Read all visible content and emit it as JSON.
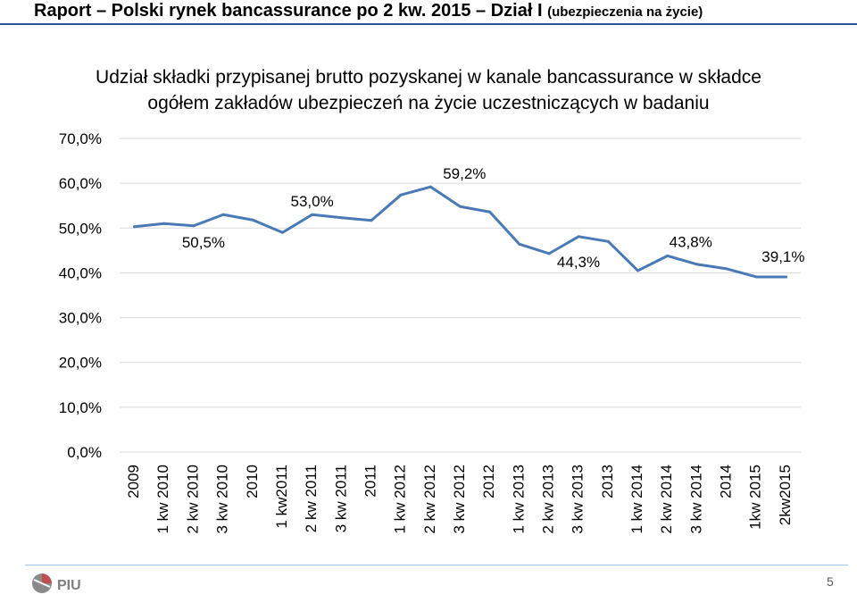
{
  "header": {
    "title": "Raport – Polski rynek bancassurance po 2 kw. 2015 – Dział I",
    "subtitle": "(ubezpieczenia na życie)"
  },
  "chart_data": {
    "type": "line",
    "title": "Udział składki przypisanej brutto pozyskanej w kanale bancassurance w składce ogółem zakładów ubezpieczeń na życie uczestniczących w badaniu",
    "categories": [
      "2009",
      "1 kw 2010",
      "2 kw 2010",
      "3 kw 2010",
      "2010",
      "1 kw2011",
      "2 kw 2011",
      "3 kw 2011",
      "2011",
      "1 kw 2012",
      "2 kw 2012",
      "3 kw 2012",
      "2012",
      "1 kw 2013",
      "2 kw 2013",
      "3 kw 2013",
      "2013",
      "1 kw 2014",
      "2 kw 2014",
      "3 kw 2014",
      "2014",
      "1kw 2015",
      "2kw2015"
    ],
    "series": [
      {
        "values": [
          50.3,
          51.0,
          50.5,
          53.0,
          51.8,
          49.0,
          53.0,
          52.3,
          51.7,
          57.4,
          59.2,
          54.8,
          53.6,
          46.4,
          44.3,
          48.1,
          47.0,
          40.5,
          43.8,
          41.9,
          40.9,
          39.1,
          39.1
        ],
        "color": "#4a7ab5"
      }
    ],
    "data_labels": [
      {
        "index": 2,
        "text": "50,5%"
      },
      {
        "index": 6,
        "text": "53,0%"
      },
      {
        "index": 10,
        "text": "59,2%"
      },
      {
        "index": 14,
        "text": "44,3%"
      },
      {
        "index": 18,
        "text": "43,8%"
      },
      {
        "index": 22,
        "text": "39,1%"
      }
    ],
    "y_ticks": [
      "0,0%",
      "10,0%",
      "20,0%",
      "30,0%",
      "40,0%",
      "50,0%",
      "60,0%",
      "70,0%"
    ],
    "ylim": [
      0,
      70
    ],
    "grid": true,
    "legend": "none"
  },
  "footer": {
    "logo_text": "PIU",
    "page_number": "5"
  }
}
